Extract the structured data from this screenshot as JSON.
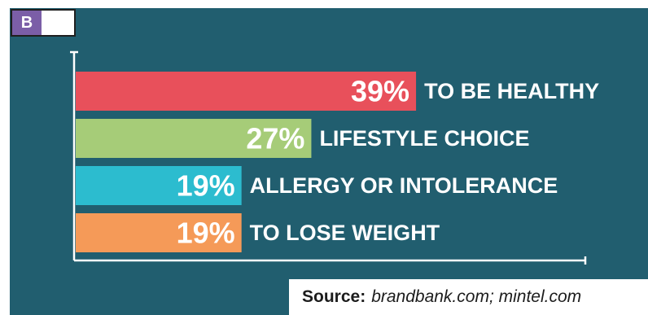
{
  "badge": {
    "letter": "B"
  },
  "source": {
    "prefix": "Source:",
    "text": "brandbank.com; mintel.com"
  },
  "colors": {
    "background": "#215e6f",
    "axis": "#ffffff",
    "badge": "#7b5ea7"
  },
  "chart_data": {
    "type": "bar",
    "orientation": "horizontal",
    "categories": [
      "TO BE HEALTHY",
      "LIFESTYLE CHOICE",
      "ALLERGY OR INTOLERANCE",
      "TO LOSE WEIGHT"
    ],
    "values": [
      39,
      27,
      19,
      19
    ],
    "value_labels": [
      "39%",
      "27%",
      "19%",
      "19%"
    ],
    "bar_colors": [
      "#e8505b",
      "#a6cc78",
      "#2cbccf",
      "#f59a58"
    ],
    "xlim": [
      0,
      100
    ],
    "grid": false
  }
}
